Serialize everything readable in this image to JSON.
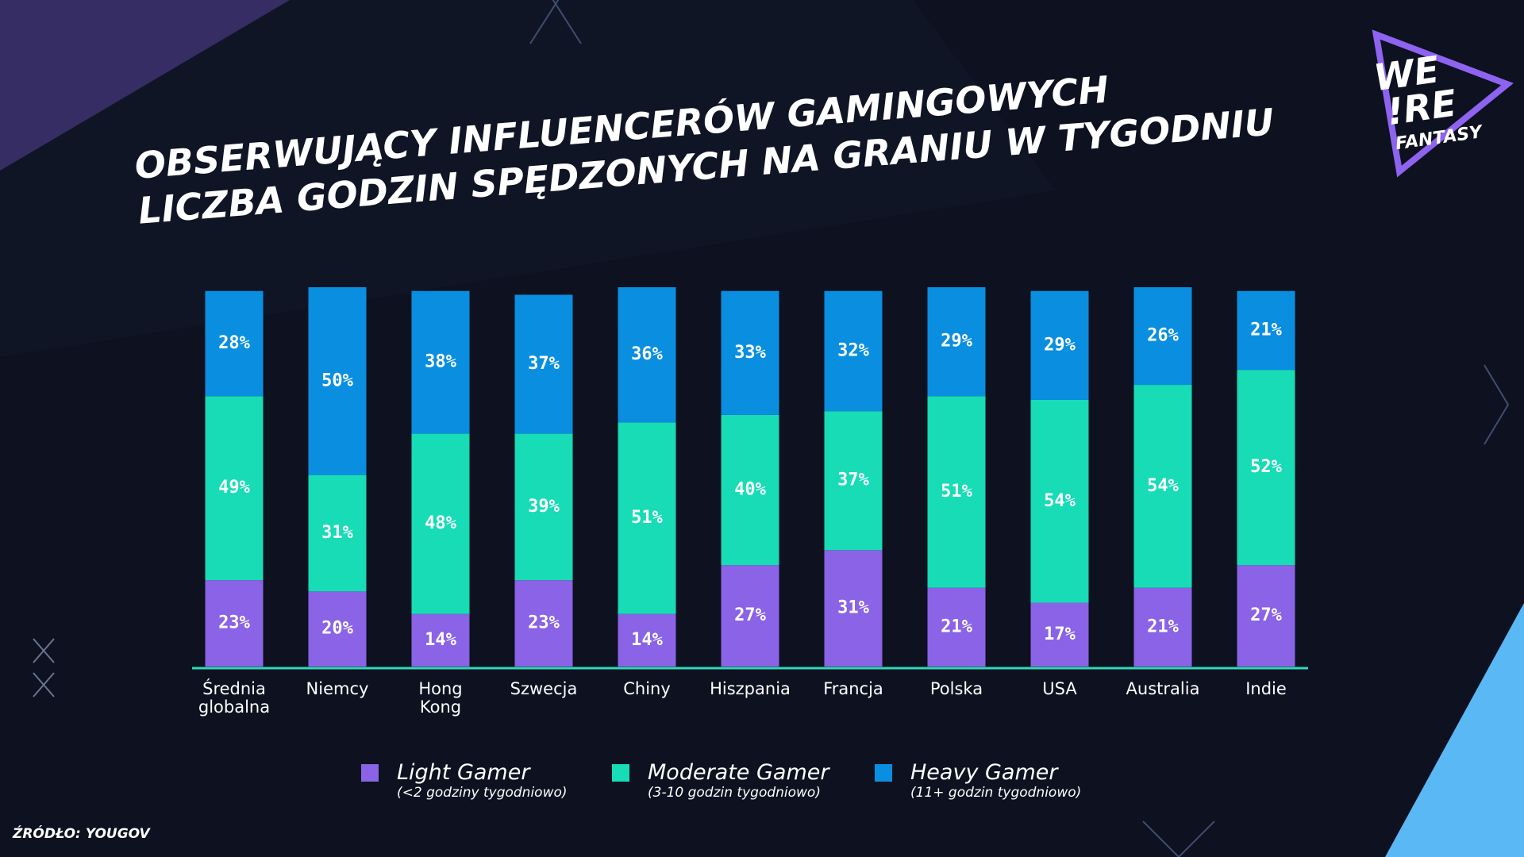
{
  "chart_data": {
    "type": "stacked_bar",
    "title": "OBSERWUJĄCY INFLUENCERÓW GAMINGOWYCH",
    "subtitle": "LICZBA GODZIN SPĘDZONYCH NA GRANIU W TYGODNIU",
    "categories": [
      "Średnia\nglobalna",
      "Niemcy",
      "Hong\nKong",
      "Szwecja",
      "Chiny",
      "Hiszpania",
      "Francja",
      "Polska",
      "USA",
      "Australia",
      "Indie"
    ],
    "ylim": [
      0,
      101
    ],
    "series": [
      {
        "name": "Light Gamer",
        "description": "(<2 godziny tygodniowo)",
        "color": "#8a63e6",
        "values": [
          23,
          20,
          14,
          23,
          14,
          27,
          31,
          21,
          17,
          21,
          27
        ],
        "value_labels": [
          "23%",
          "20%",
          "14%",
          "23%",
          "14%",
          "27%",
          "31%",
          "21%",
          "17%",
          "21%",
          "27%"
        ]
      },
      {
        "name": "Moderate Gamer",
        "description": "(3-10 godzin tygodniowo)",
        "color": "#17dcb6",
        "values": [
          49,
          31,
          48,
          39,
          51,
          40,
          37,
          51,
          54,
          54,
          52
        ],
        "value_labels": [
          "49%",
          "31%",
          "48%",
          "39%",
          "51%",
          "40%",
          "37%",
          "51%",
          "54%",
          "54%",
          "52%"
        ]
      },
      {
        "name": "Heavy Gamer",
        "description": "(11+ godzin tygodniowo)",
        "color": "#0a8fe0",
        "values": [
          28,
          50,
          38,
          37,
          36,
          33,
          32,
          29,
          29,
          26,
          21
        ],
        "value_labels": [
          "28%",
          "50%",
          "38%",
          "37%",
          "36%",
          "33%",
          "32%",
          "29%",
          "29%",
          "26%",
          "21%"
        ]
      }
    ],
    "source": "ŹRÓDŁO: YOUGOV"
  },
  "logo": {
    "line1": "WE",
    "line2": "!RE",
    "line3": "FANTASY"
  }
}
